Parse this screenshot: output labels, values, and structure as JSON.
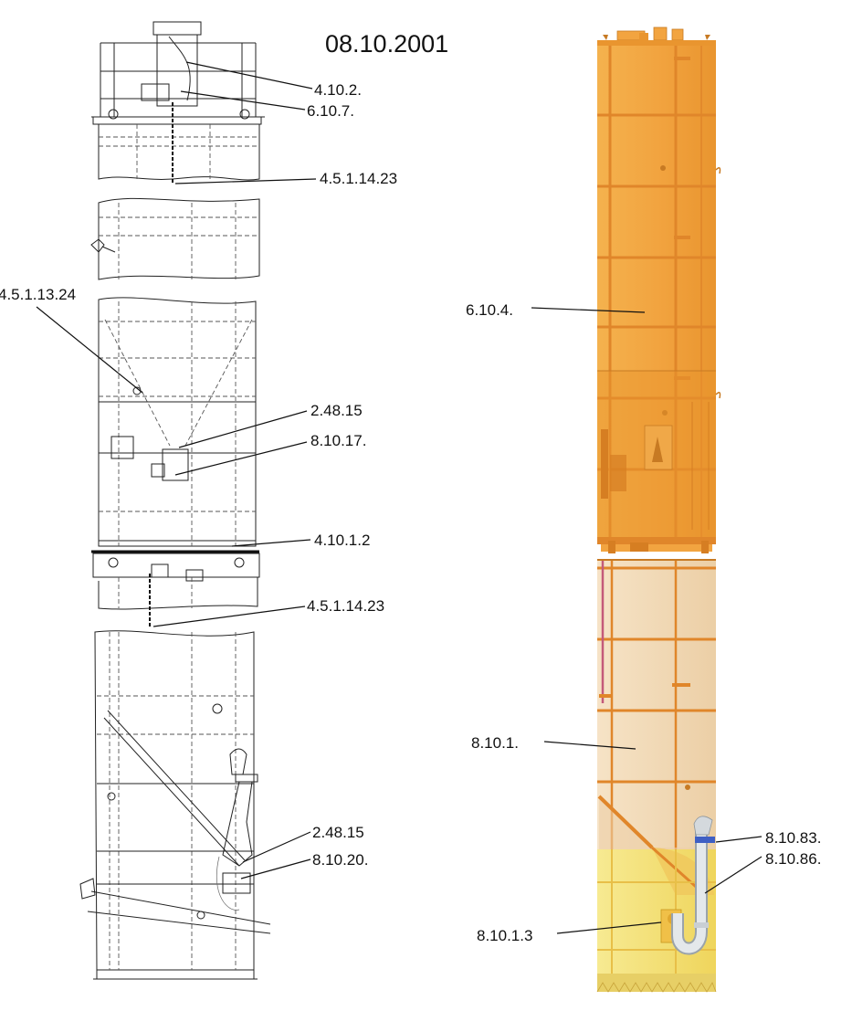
{
  "title": "08.10.2001",
  "left_callouts": {
    "c1": "4.10.2.",
    "c2": "6.10.7.",
    "c3": "4.5.1.14.23",
    "c4": "4.5.1.13.24",
    "c5": "2.48.15",
    "c6": "8.10.17.",
    "c7": "4.10.1.2",
    "c8": "4.5.1.14.23",
    "c9": "2.48.15",
    "c10": "8.10.20."
  },
  "right_callouts": {
    "c1": "6.10.4.",
    "c2": "8.10.1.",
    "c3": "8.10.83.",
    "c4": "8.10.86.",
    "c5": "8.10.1.3"
  },
  "colors": {
    "upper_silo": "#f2a240",
    "lower_silo": "#f3d9b5",
    "base_section": "#f4e27a",
    "frame_band": "#e0862a",
    "pipe": "#dfe3e6"
  }
}
